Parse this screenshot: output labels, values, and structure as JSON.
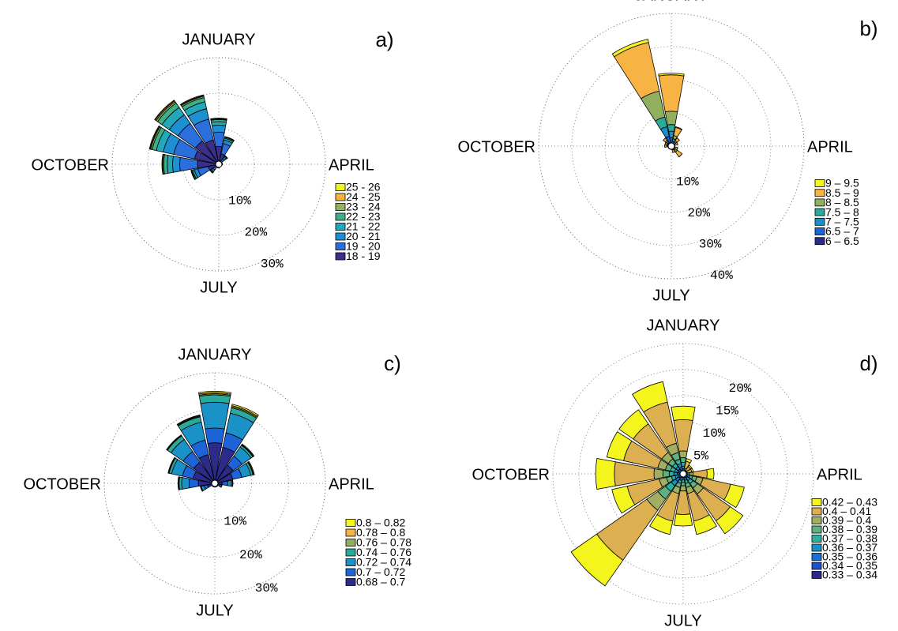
{
  "chart_data": [
    {
      "type": "rose",
      "panel": "a)",
      "grid": true,
      "categories": [
        "JANUARY",
        null,
        null,
        null,
        "APRIL",
        null,
        null,
        null,
        "JULY",
        null,
        null,
        null,
        "OCTOBER",
        null,
        null,
        null
      ],
      "ylim": [
        0,
        30
      ],
      "yticks": [
        {
          "value": 10,
          "label": "10%"
        },
        {
          "value": 20,
          "label": "20%"
        },
        {
          "value": 30,
          "label": "30%"
        }
      ],
      "series": [
        {
          "name": "18 - 19",
          "color": "#3b2f8c",
          "values": [
            5,
            3,
            1,
            0.5,
            0.5,
            0.2,
            0.2,
            0.2,
            0.5,
            0.5,
            1,
            3,
            6,
            7,
            8,
            7
          ]
        },
        {
          "name": "19 - 20",
          "color": "#2a6fdb",
          "values": [
            4,
            3,
            1,
            0.3,
            0.3,
            0.2,
            0.2,
            0.2,
            0.3,
            0.3,
            1,
            3,
            5,
            6,
            6,
            6
          ]
        },
        {
          "name": "20 - 21",
          "color": "#1e8fd0",
          "values": [
            2,
            1,
            0.5,
            0.1,
            0.1,
            0.1,
            0.1,
            0.1,
            0.1,
            0.1,
            0.5,
            1,
            2,
            3,
            3,
            3
          ]
        },
        {
          "name": "21 - 22",
          "color": "#22a8b8",
          "values": [
            1,
            0.5,
            0.3,
            0.1,
            0.1,
            0,
            0,
            0,
            0.1,
            0.1,
            0.3,
            0.5,
            1.5,
            2,
            2.5,
            2
          ]
        },
        {
          "name": "22 - 23",
          "color": "#3db08a",
          "values": [
            0.6,
            0.3,
            0.1,
            0,
            0,
            0,
            0,
            0,
            0,
            0,
            0.1,
            0.3,
            1,
            1.2,
            1.5,
            1.2
          ]
        },
        {
          "name": "23 - 24",
          "color": "#94b060",
          "values": [
            0.2,
            0.1,
            0.1,
            0,
            0,
            0,
            0,
            0,
            0,
            0,
            0.1,
            0.1,
            0.3,
            0.4,
            0.5,
            0.4
          ]
        },
        {
          "name": "24 - 25",
          "color": "#f7b444",
          "values": [
            0.1,
            0.1,
            0,
            0,
            0,
            0,
            0,
            0,
            0,
            0,
            0,
            0.1,
            0.1,
            0.2,
            0.3,
            0.2
          ]
        },
        {
          "name": "25 - 26",
          "color": "#f5f51e",
          "values": [
            0.1,
            0,
            0,
            0,
            0,
            0,
            0,
            0,
            0,
            0,
            0,
            0,
            0.1,
            0.2,
            0.2,
            0.2
          ]
        }
      ]
    },
    {
      "type": "rose",
      "panel": "b)",
      "grid": true,
      "categories": [
        "JANUARY",
        null,
        null,
        null,
        "APRIL",
        null,
        null,
        null,
        "JULY",
        null,
        null,
        null,
        "OCTOBER",
        null,
        null,
        null
      ],
      "ylim": [
        0,
        40
      ],
      "yticks": [
        {
          "value": 10,
          "label": "10%"
        },
        {
          "value": 20,
          "label": "20%"
        },
        {
          "value": 30,
          "label": "30%"
        },
        {
          "value": 40,
          "label": "40%"
        }
      ],
      "series": [
        {
          "name": "6 – 6.5",
          "color": "#2c2a8a",
          "values": [
            1,
            0.3,
            0.2,
            0.1,
            0.1,
            0.1,
            0.2,
            0.1,
            0.1,
            0.1,
            0.1,
            0.1,
            0.2,
            0.2,
            0.3,
            1
          ]
        },
        {
          "name": "6.5 – 7",
          "color": "#1c64d8",
          "values": [
            1.5,
            0.5,
            0.3,
            0.2,
            0.1,
            0.2,
            0.3,
            0.2,
            0.1,
            0.1,
            0.1,
            0.1,
            0.3,
            0.3,
            0.4,
            2
          ]
        },
        {
          "name": "7 – 7.5",
          "color": "#1a8fc8",
          "values": [
            2,
            0.7,
            0.5,
            0.3,
            0.2,
            0.3,
            0.5,
            0.3,
            0.2,
            0.2,
            0.2,
            0.2,
            0.3,
            0.3,
            0.5,
            3
          ]
        },
        {
          "name": "7.5 – 8",
          "color": "#2aaa9a",
          "values": [
            2,
            0.8,
            0.5,
            0.3,
            0.2,
            0.3,
            0.5,
            0.3,
            0.2,
            0.2,
            0.2,
            0.2,
            0.3,
            0.3,
            0.5,
            3
          ]
        },
        {
          "name": "8 – 8.5",
          "color": "#90b060",
          "values": [
            4,
            1,
            0.5,
            0.3,
            0.1,
            0.3,
            0.7,
            0.3,
            0.1,
            0.1,
            0.1,
            0.1,
            0.3,
            0.3,
            0.5,
            8
          ]
        },
        {
          "name": "8.5 – 9",
          "color": "#f7b444",
          "values": [
            11,
            2.5,
            1,
            0.8,
            0.3,
            0.8,
            1.8,
            0.8,
            0.3,
            0.3,
            0.3,
            0.3,
            0.6,
            0.6,
            0.8,
            15
          ]
        },
        {
          "name": "9 – 9.5",
          "color": "#f5f51e",
          "values": [
            0.5,
            0.2,
            0,
            0,
            0,
            0,
            0,
            0,
            0,
            0,
            0,
            0,
            0,
            0,
            0,
            1
          ]
        }
      ]
    },
    {
      "type": "rose",
      "panel": "c)",
      "grid": true,
      "categories": [
        "JANUARY",
        null,
        null,
        null,
        "APRIL",
        null,
        null,
        null,
        "JULY",
        null,
        null,
        null,
        "OCTOBER",
        null,
        null,
        null
      ],
      "ylim": [
        0,
        30
      ],
      "yticks": [
        {
          "value": 10,
          "label": "10%"
        },
        {
          "value": 20,
          "label": "20%"
        },
        {
          "value": 30,
          "label": "30%"
        }
      ],
      "series": [
        {
          "name": "0.68 – 0.7",
          "color": "#2c2a8a",
          "values": [
            11,
            10,
            6,
            5,
            2,
            1,
            0.5,
            0.5,
            0.5,
            0.5,
            0.5,
            2,
            4.5,
            6,
            7,
            8
          ]
        },
        {
          "name": "0.7 – 0.72",
          "color": "#1c64d8",
          "values": [
            4,
            4,
            3,
            2.5,
            1.5,
            0.5,
            0.3,
            0.3,
            0.3,
            0.3,
            0.3,
            1,
            2.5,
            3,
            3.5,
            4
          ]
        },
        {
          "name": "0.72 – 0.74",
          "color": "#1a92c8",
          "values": [
            7,
            5.5,
            3,
            2.5,
            1,
            0.4,
            0.2,
            0.2,
            0.2,
            0.2,
            0.2,
            0.8,
            2,
            3,
            4,
            5
          ]
        },
        {
          "name": "0.74 – 0.76",
          "color": "#2aaa9a",
          "values": [
            2,
            1.5,
            0.6,
            0.6,
            0.3,
            0.1,
            0,
            0,
            0,
            0,
            0,
            0.2,
            0.7,
            0.7,
            1.2,
            1.5
          ]
        },
        {
          "name": "0.76 – 0.78",
          "color": "#90b060",
          "values": [
            0.3,
            0.3,
            0.1,
            0.1,
            0.1,
            0,
            0,
            0,
            0,
            0,
            0,
            0,
            0.1,
            0.1,
            0.1,
            0.2
          ]
        },
        {
          "name": "0.78 – 0.8",
          "color": "#f7b444",
          "values": [
            0.3,
            0.3,
            0.1,
            0.1,
            0,
            0,
            0,
            0,
            0,
            0,
            0,
            0,
            0.1,
            0.1,
            0.1,
            0.2
          ]
        },
        {
          "name": "0.8 – 0.82",
          "color": "#f5f51e",
          "values": [
            0.4,
            0.4,
            0.2,
            0.2,
            0,
            0,
            0,
            0,
            0,
            0,
            0,
            0,
            0.1,
            0.1,
            0.1,
            0.1
          ]
        }
      ]
    },
    {
      "type": "rose",
      "panel": "d)",
      "grid": true,
      "categories": [
        "JANUARY",
        null,
        null,
        null,
        "APRIL",
        null,
        null,
        null,
        "JULY",
        null,
        null,
        null,
        "OCTOBER",
        null,
        null,
        null
      ],
      "ylim": [
        0,
        25
      ],
      "yticks": [
        {
          "value": 5,
          "label": "5%"
        },
        {
          "value": 10,
          "label": "10%"
        },
        {
          "value": 15,
          "label": "15%"
        },
        {
          "value": 20,
          "label": "20%"
        }
      ],
      "series": [
        {
          "name": "0.33 – 0.34",
          "color": "#2c2a8a",
          "values": [
            0.3,
            0.1,
            0.1,
            0.1,
            0.1,
            0.2,
            0.3,
            0.2,
            0.2,
            0.2,
            0.5,
            0.3,
            0.3,
            0.3,
            0.3,
            0.4
          ]
        },
        {
          "name": "0.34 – 0.35",
          "color": "#2050c8",
          "values": [
            0.3,
            0.1,
            0.1,
            0.1,
            0.1,
            0.2,
            0.3,
            0.2,
            0.2,
            0.2,
            0.5,
            0.3,
            0.3,
            0.3,
            0.3,
            0.4
          ]
        },
        {
          "name": "0.35 – 0.36",
          "color": "#1a70d8",
          "values": [
            0.4,
            0.1,
            0.1,
            0.1,
            0.2,
            0.4,
            0.4,
            0.4,
            0.3,
            0.4,
            0.8,
            0.4,
            0.5,
            0.5,
            0.5,
            0.5
          ]
        },
        {
          "name": "0.36 – 0.37",
          "color": "#1a90c8",
          "values": [
            0.5,
            0.1,
            0.1,
            0.1,
            0.2,
            0.5,
            0.6,
            0.5,
            0.4,
            0.5,
            1,
            0.6,
            0.7,
            0.6,
            0.6,
            0.7
          ]
        },
        {
          "name": "0.37 – 0.38",
          "color": "#30b0a0",
          "values": [
            0.7,
            0.2,
            0.1,
            0.1,
            0.3,
            0.6,
            0.7,
            0.6,
            0.5,
            0.6,
            1.3,
            0.7,
            0.9,
            0.8,
            0.8,
            0.9
          ]
        },
        {
          "name": "0.38 – 0.39",
          "color": "#60b080",
          "values": [
            0.9,
            0.2,
            0.1,
            0.1,
            0.4,
            0.8,
            1,
            0.8,
            0.7,
            0.8,
            1.8,
            1,
            1.2,
            1,
            1,
            1.3
          ]
        },
        {
          "name": "0.39 – 0.4",
          "color": "#a0b060",
          "values": [
            1.3,
            0.3,
            0.2,
            0.2,
            0.6,
            1.2,
            1.4,
            1.2,
            1,
            1.2,
            2.6,
            1.4,
            1.7,
            1.5,
            1.5,
            1.8
          ]
        },
        {
          "name": "0.4 – 0.41",
          "color": "#dcb050",
          "values": [
            6,
            1.4,
            0.9,
            0.9,
            2.7,
            5.4,
            6.3,
            5.4,
            4.5,
            5.4,
            11.7,
            6.3,
            7.6,
            6.7,
            6.7,
            8.1
          ]
        },
        {
          "name": "0.42 – 0.43",
          "color": "#f5f51e",
          "values": [
            2.6,
            0.5,
            0.3,
            0.3,
            1.3,
            2.7,
            3,
            2.6,
            2.2,
            2.6,
            6,
            3,
            3.6,
            3.3,
            3.3,
            4
          ]
        }
      ]
    }
  ]
}
